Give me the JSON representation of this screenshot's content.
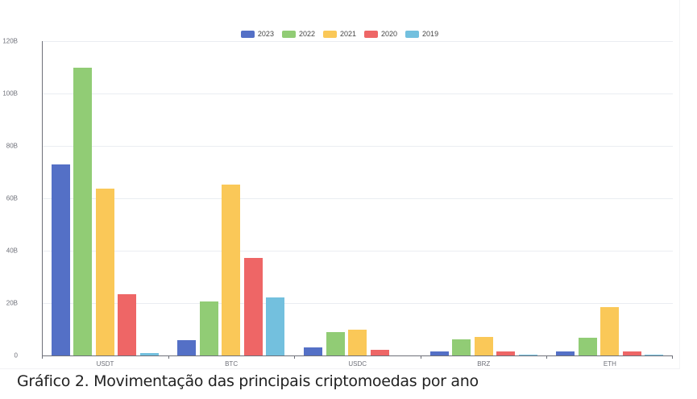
{
  "caption": "Gráfico 2. Movimentação das principais criptomoedas por ano",
  "legend": [
    {
      "label": "2023",
      "color": "#5470c6"
    },
    {
      "label": "2022",
      "color": "#91cc75"
    },
    {
      "label": "2021",
      "color": "#fac858"
    },
    {
      "label": "2020",
      "color": "#ee6666"
    },
    {
      "label": "2019",
      "color": "#73c0de"
    }
  ],
  "yaxis": {
    "ticks": [
      "0",
      "20B",
      "40B",
      "60B",
      "80B",
      "100B",
      "120B"
    ]
  },
  "chart_data": {
    "type": "bar",
    "title": "",
    "xlabel": "",
    "ylabel": "",
    "ylim": [
      0,
      120
    ],
    "unit": "B",
    "grid": true,
    "legend_position": "top-center",
    "categories": [
      "USDT",
      "BTC",
      "USDC",
      "BRZ",
      "ETH"
    ],
    "series": [
      {
        "name": "2023",
        "color": "#5470c6",
        "values": [
          73,
          5.8,
          3.2,
          1.5,
          1.4
        ]
      },
      {
        "name": "2022",
        "color": "#91cc75",
        "values": [
          110,
          20.5,
          8.9,
          6.3,
          6.8
        ]
      },
      {
        "name": "2021",
        "color": "#fac858",
        "values": [
          63.7,
          65.2,
          9.7,
          7.1,
          18.5
        ]
      },
      {
        "name": "2020",
        "color": "#ee6666",
        "values": [
          23.4,
          37.2,
          2.2,
          1.5,
          1.5
        ]
      },
      {
        "name": "2019",
        "color": "#73c0de",
        "values": [
          0.8,
          22.3,
          0,
          0.3,
          0.2
        ]
      }
    ]
  }
}
